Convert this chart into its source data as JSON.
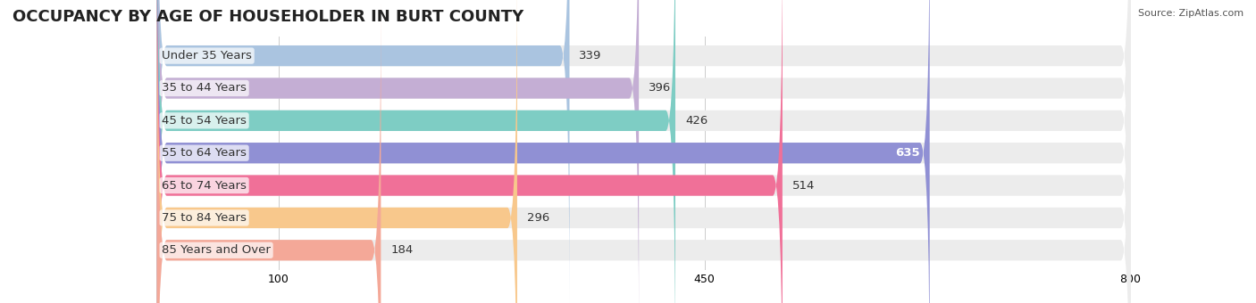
{
  "title": "OCCUPANCY BY AGE OF HOUSEHOLDER IN BURT COUNTY",
  "source": "Source: ZipAtlas.com",
  "categories": [
    "Under 35 Years",
    "35 to 44 Years",
    "45 to 54 Years",
    "55 to 64 Years",
    "65 to 74 Years",
    "75 to 84 Years",
    "85 Years and Over"
  ],
  "values": [
    339,
    396,
    426,
    635,
    514,
    296,
    184
  ],
  "bar_colors": [
    "#aac4e0",
    "#c4aed4",
    "#7ecdc4",
    "#9090d4",
    "#f07098",
    "#f8c88c",
    "#f4a898"
  ],
  "bar_bg_color": "#f0f0f0",
  "xlim": [
    0,
    800
  ],
  "xticks": [
    100,
    450,
    800
  ],
  "title_fontsize": 13,
  "label_fontsize": 9.5,
  "value_fontsize": 9.5,
  "background_color": "#ffffff",
  "bar_height": 0.62,
  "value_label_color_inside": "#ffffff",
  "value_label_color_outside": "#333333"
}
